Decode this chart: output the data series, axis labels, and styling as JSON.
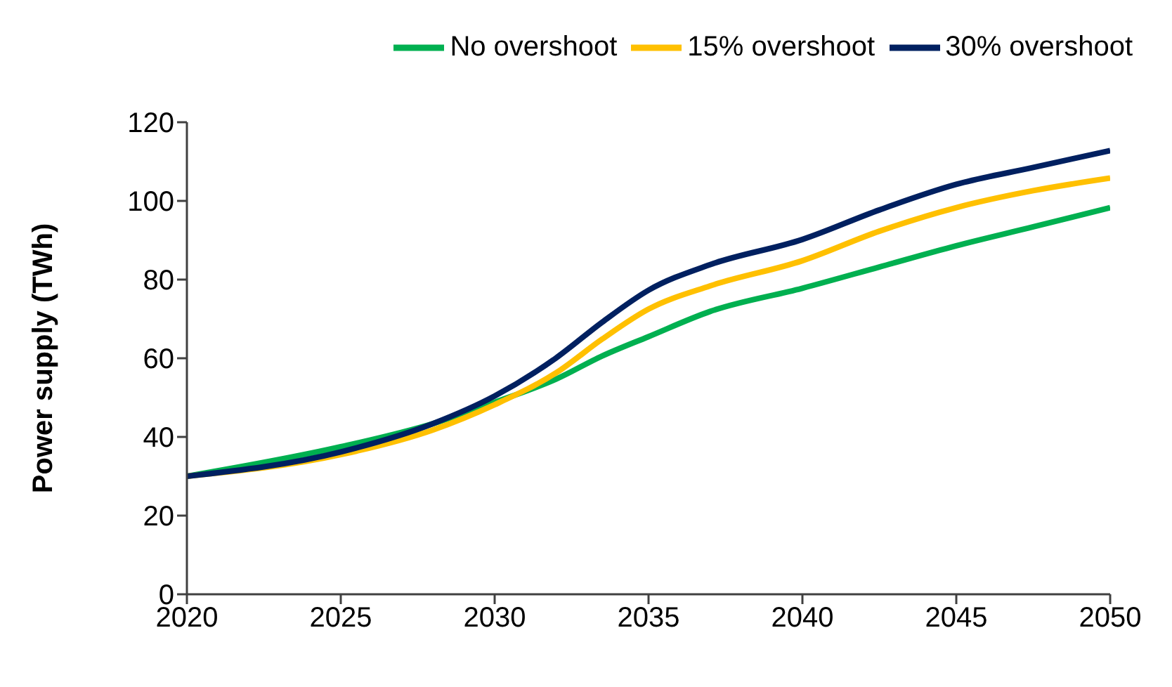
{
  "chart_data": {
    "type": "line",
    "ylabel": "Power supply (TWh)",
    "x": [
      2020,
      2025,
      2028,
      2030,
      2032,
      2033.5,
      2035,
      2037,
      2040,
      2042.5,
      2045,
      2047.5,
      2050
    ],
    "series": [
      {
        "name": "No overshoot",
        "color": "#00b050",
        "values": [
          30,
          37.5,
          43.4,
          48.8,
          54.7,
          60.6,
          65.5,
          71.9,
          77.8,
          83.2,
          88.6,
          93.4,
          98.3
        ]
      },
      {
        "name": "15% overshoot",
        "color": "#ffc000",
        "values": [
          30,
          35.5,
          41.8,
          48.2,
          56.3,
          64.9,
          72.5,
          78.4,
          84.8,
          92.3,
          98.3,
          102.6,
          105.8
        ]
      },
      {
        "name": "30% overshoot",
        "color": "#002060",
        "values": [
          30,
          36.2,
          43.4,
          50.4,
          60.1,
          69.2,
          77.3,
          83.8,
          90.2,
          97.7,
          104.2,
          108.5,
          112.8
        ]
      }
    ],
    "xlim": [
      2020,
      2050
    ],
    "xticks": [
      2020,
      2025,
      2030,
      2035,
      2040,
      2045,
      2050
    ],
    "ylim": [
      0,
      120
    ],
    "yticks": [
      0,
      20,
      40,
      60,
      80,
      100,
      120
    ],
    "grid": false,
    "legend": "top right",
    "marker": "none",
    "line_style": "solid"
  }
}
